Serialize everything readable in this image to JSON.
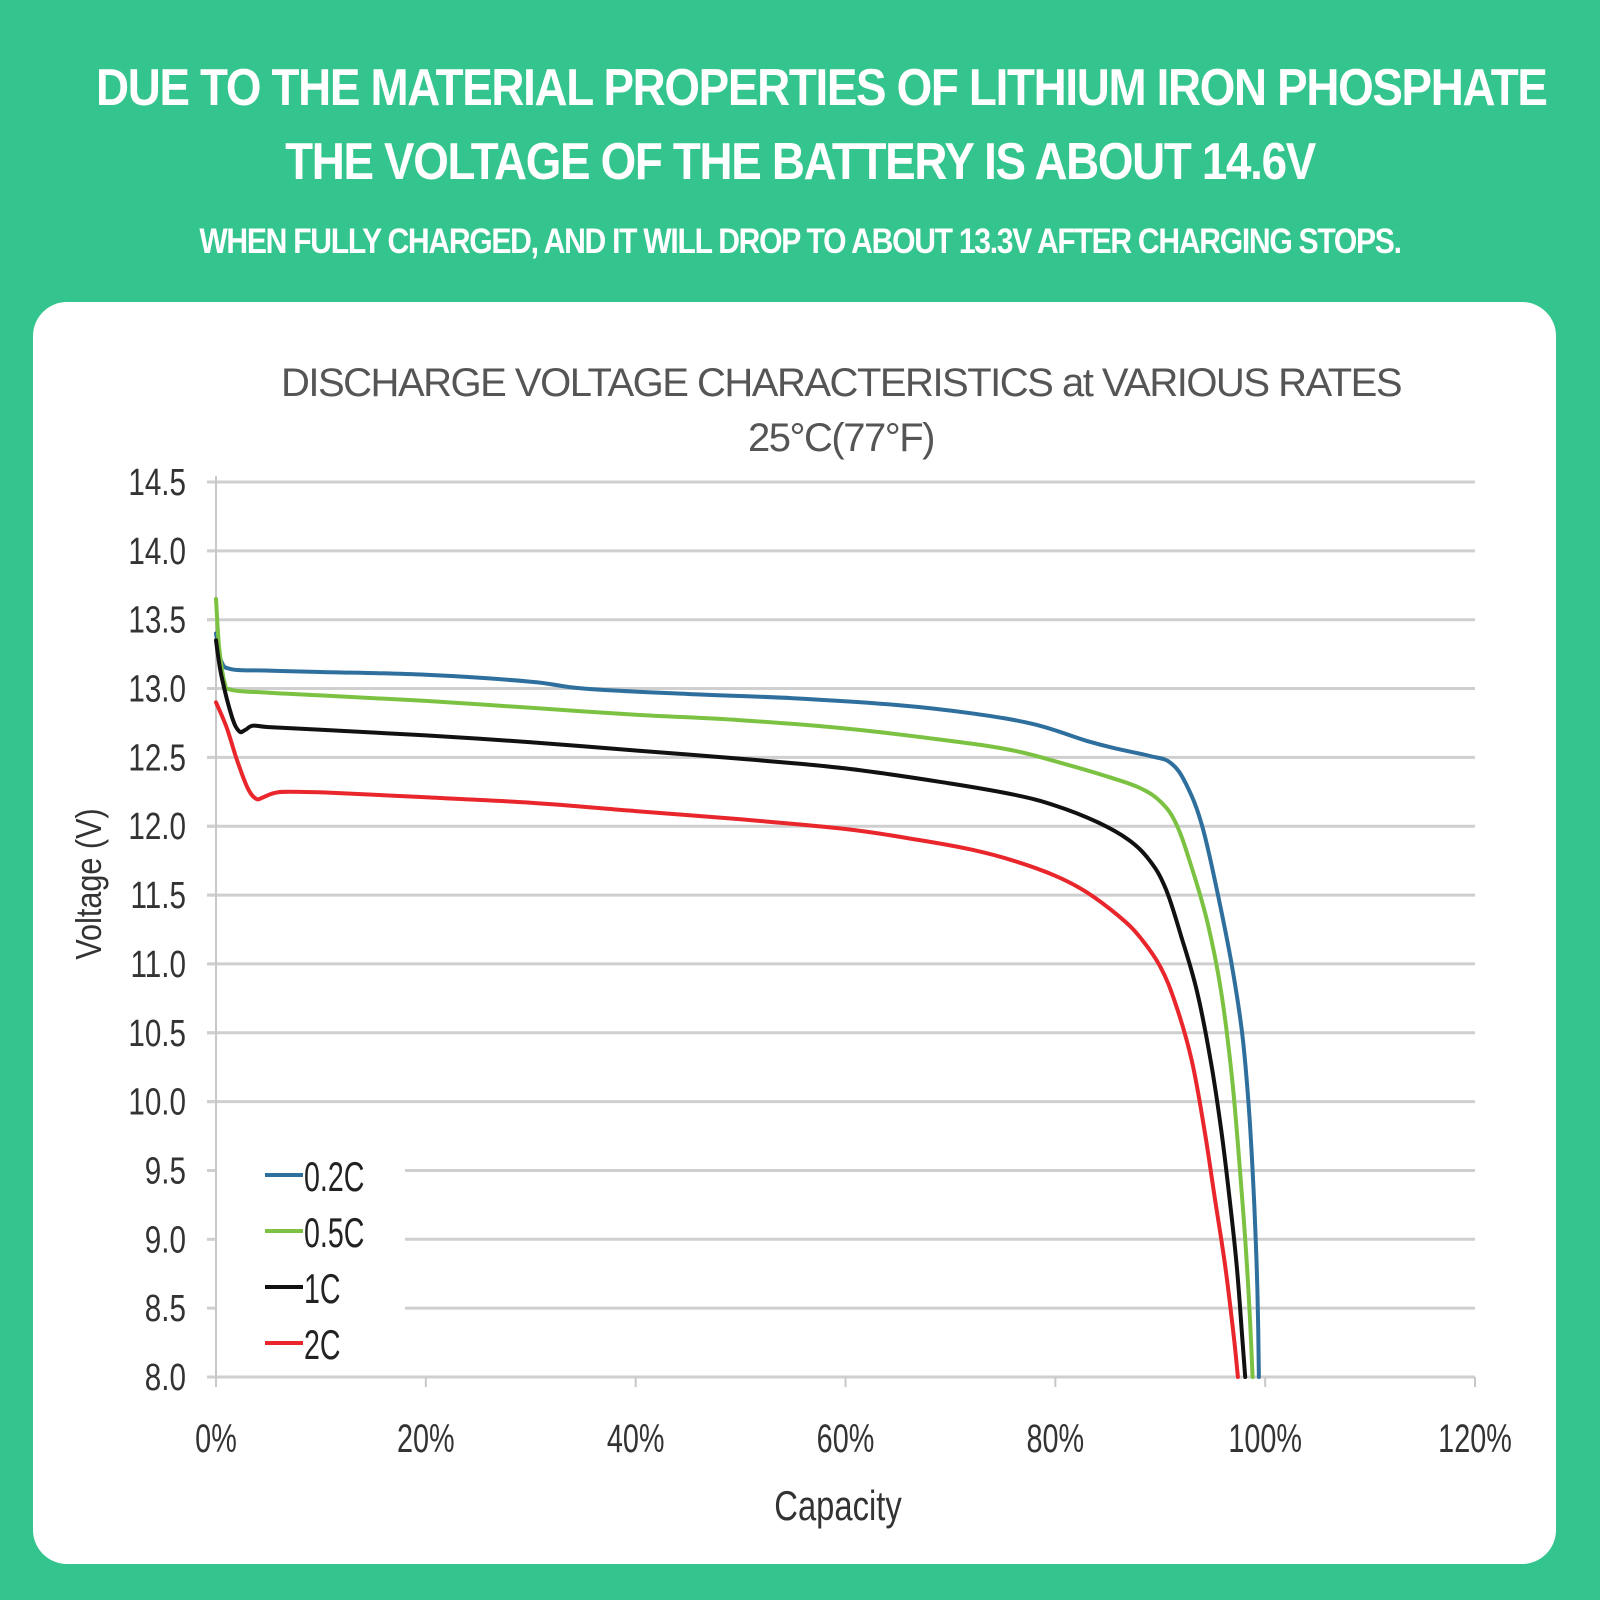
{
  "header": {
    "line1": "DUE TO THE MATERIAL PROPERTIES OF LITHIUM IRON PHOSPHATE",
    "line2": "THE VOLTAGE OF THE BATTERY IS ABOUT 14.6V",
    "line3": "WHEN FULLY CHARGED, AND IT WILL DROP TO ABOUT 13.3V AFTER CHARGING STOPS."
  },
  "colors": {
    "background": "#34c58e",
    "card": "#ffffff",
    "title_text": "#555555",
    "grid": "#cfcfcf"
  },
  "chart_data": {
    "type": "line",
    "title": "DISCHARGE VOLTAGE CHARACTERISTICS at VARIOUS RATES",
    "subtitle": "25°C(77°F)",
    "xlabel": "Capacity",
    "ylabel": "Voltage (V)",
    "xlim": [
      0,
      120
    ],
    "ylim": [
      8.0,
      14.5
    ],
    "x_ticks": [
      "0%",
      "20%",
      "40%",
      "60%",
      "80%",
      "100%",
      "120%"
    ],
    "x_tick_values": [
      0,
      20,
      40,
      60,
      80,
      100,
      120
    ],
    "y_ticks": [
      "14.5",
      "14.0",
      "13.5",
      "13.0",
      "12.5",
      "12.0",
      "11.5",
      "11.0",
      "10.5",
      "10.0",
      "9.5",
      "9.0",
      "8.5",
      "8.0"
    ],
    "y_tick_values": [
      14.5,
      14.0,
      13.5,
      13.0,
      12.5,
      12.0,
      11.5,
      11.0,
      10.5,
      10.0,
      9.5,
      9.0,
      8.5,
      8.0
    ],
    "grid": true,
    "legend_position": "bottom-left",
    "series": [
      {
        "name": "0.2C",
        "color": "#2e6f9e",
        "points": [
          [
            0,
            13.4
          ],
          [
            0.5,
            13.2
          ],
          [
            1.5,
            13.14
          ],
          [
            5,
            13.13
          ],
          [
            10,
            13.12
          ],
          [
            20,
            13.1
          ],
          [
            30,
            13.05
          ],
          [
            35,
            13.0
          ],
          [
            45,
            12.96
          ],
          [
            55,
            12.93
          ],
          [
            65,
            12.88
          ],
          [
            72,
            12.82
          ],
          [
            78,
            12.74
          ],
          [
            83,
            12.62
          ],
          [
            86,
            12.56
          ],
          [
            89,
            12.51
          ],
          [
            91,
            12.46
          ],
          [
            92.5,
            12.3
          ],
          [
            94,
            12.0
          ],
          [
            95.5,
            11.5
          ],
          [
            96.8,
            11.0
          ],
          [
            97.8,
            10.5
          ],
          [
            98.4,
            10.0
          ],
          [
            98.8,
            9.5
          ],
          [
            99.1,
            9.0
          ],
          [
            99.3,
            8.5
          ],
          [
            99.4,
            8.0
          ]
        ]
      },
      {
        "name": "0.5C",
        "color": "#7cc242",
        "points": [
          [
            0,
            13.65
          ],
          [
            0.3,
            13.3
          ],
          [
            0.8,
            13.05
          ],
          [
            1.5,
            12.99
          ],
          [
            5,
            12.97
          ],
          [
            10,
            12.95
          ],
          [
            20,
            12.91
          ],
          [
            30,
            12.86
          ],
          [
            40,
            12.81
          ],
          [
            50,
            12.77
          ],
          [
            60,
            12.71
          ],
          [
            70,
            12.62
          ],
          [
            76,
            12.55
          ],
          [
            81,
            12.45
          ],
          [
            85,
            12.36
          ],
          [
            88,
            12.28
          ],
          [
            90,
            12.18
          ],
          [
            91.5,
            12.02
          ],
          [
            93,
            11.7
          ],
          [
            94.5,
            11.3
          ],
          [
            95.8,
            10.8
          ],
          [
            96.8,
            10.2
          ],
          [
            97.5,
            9.6
          ],
          [
            98.1,
            9.0
          ],
          [
            98.5,
            8.5
          ],
          [
            98.8,
            8.0
          ]
        ]
      },
      {
        "name": "1C",
        "color": "#111111",
        "points": [
          [
            0,
            13.35
          ],
          [
            0.5,
            13.1
          ],
          [
            1.5,
            12.8
          ],
          [
            2.2,
            12.69
          ],
          [
            2.8,
            12.7
          ],
          [
            3.5,
            12.73
          ],
          [
            5,
            12.72
          ],
          [
            10,
            12.7
          ],
          [
            20,
            12.66
          ],
          [
            30,
            12.61
          ],
          [
            40,
            12.55
          ],
          [
            50,
            12.49
          ],
          [
            60,
            12.42
          ],
          [
            70,
            12.31
          ],
          [
            76,
            12.23
          ],
          [
            80,
            12.15
          ],
          [
            84,
            12.03
          ],
          [
            87,
            11.9
          ],
          [
            89,
            11.75
          ],
          [
            90.5,
            11.55
          ],
          [
            92,
            11.2
          ],
          [
            93.5,
            10.8
          ],
          [
            94.8,
            10.3
          ],
          [
            95.8,
            9.8
          ],
          [
            96.6,
            9.3
          ],
          [
            97.3,
            8.8
          ],
          [
            97.8,
            8.3
          ],
          [
            98.1,
            8.0
          ]
        ]
      },
      {
        "name": "2C",
        "color": "#e8262b",
        "points": [
          [
            0,
            12.9
          ],
          [
            1,
            12.72
          ],
          [
            2,
            12.48
          ],
          [
            3,
            12.28
          ],
          [
            3.8,
            12.2
          ],
          [
            4.5,
            12.21
          ],
          [
            5.5,
            12.24
          ],
          [
            7,
            12.25
          ],
          [
            12,
            12.24
          ],
          [
            20,
            12.21
          ],
          [
            30,
            12.17
          ],
          [
            40,
            12.11
          ],
          [
            50,
            12.05
          ],
          [
            60,
            11.98
          ],
          [
            67,
            11.9
          ],
          [
            72,
            11.83
          ],
          [
            76,
            11.75
          ],
          [
            80,
            11.64
          ],
          [
            83,
            11.52
          ],
          [
            86,
            11.35
          ],
          [
            88,
            11.2
          ],
          [
            90,
            10.98
          ],
          [
            91.5,
            10.7
          ],
          [
            93,
            10.3
          ],
          [
            94.2,
            9.8
          ],
          [
            95.2,
            9.3
          ],
          [
            96.2,
            8.8
          ],
          [
            97,
            8.3
          ],
          [
            97.4,
            8.0
          ]
        ]
      }
    ]
  }
}
